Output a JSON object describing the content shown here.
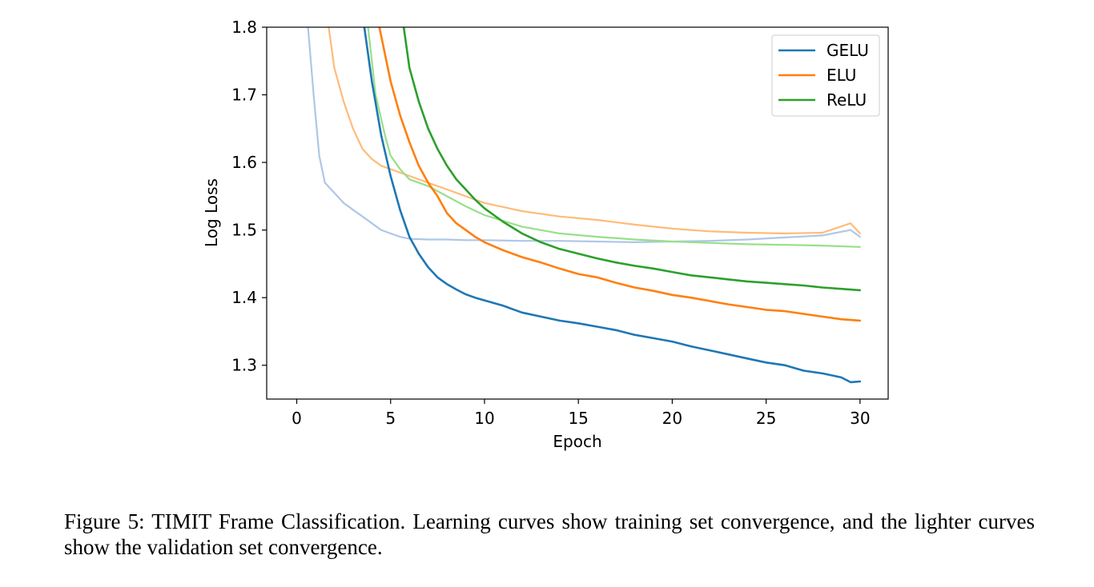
{
  "chart_data": {
    "type": "line",
    "xlabel": "Epoch",
    "ylabel": "Log Loss",
    "xlim": [
      -1.6,
      31.5
    ],
    "ylim": [
      1.25,
      1.8
    ],
    "xticks": [
      0,
      5,
      10,
      15,
      20,
      25,
      30
    ],
    "yticks": [
      1.3,
      1.4,
      1.5,
      1.6,
      1.7,
      1.8
    ],
    "x_tick_labels": [
      "0",
      "5",
      "10",
      "15",
      "20",
      "25",
      "30"
    ],
    "y_tick_labels": [
      "1.3",
      "1.4",
      "1.5",
      "1.6",
      "1.7",
      "1.8"
    ],
    "grid": false,
    "legend_position": "top-right",
    "series": [
      {
        "name": "GELU",
        "role": "train",
        "color": "#1f77b4",
        "x": [
          3.6,
          4.0,
          4.5,
          5.0,
          5.5,
          6.0,
          6.5,
          7.0,
          7.5,
          8.0,
          8.5,
          9.0,
          9.5,
          10.0,
          11.0,
          12.0,
          13.0,
          14.0,
          15.0,
          16.0,
          17.0,
          18.0,
          19.0,
          20.0,
          21.0,
          22.0,
          23.0,
          24.0,
          25.0,
          26.0,
          27.0,
          28.0,
          29.0,
          29.5,
          30.0
        ],
        "y": [
          1.8,
          1.72,
          1.64,
          1.58,
          1.53,
          1.49,
          1.465,
          1.445,
          1.43,
          1.42,
          1.412,
          1.405,
          1.4,
          1.396,
          1.388,
          1.378,
          1.372,
          1.366,
          1.362,
          1.357,
          1.352,
          1.345,
          1.34,
          1.335,
          1.328,
          1.322,
          1.316,
          1.31,
          1.304,
          1.3,
          1.292,
          1.288,
          1.282,
          1.275,
          1.276
        ]
      },
      {
        "name": "ELU",
        "role": "train",
        "color": "#ff7f0e",
        "x": [
          4.4,
          5.0,
          5.5,
          6.0,
          6.5,
          7.0,
          7.5,
          8.0,
          8.5,
          9.0,
          9.5,
          10.0,
          11.0,
          12.0,
          13.0,
          14.0,
          15.0,
          16.0,
          17.0,
          18.0,
          19.0,
          20.0,
          21.0,
          22.0,
          23.0,
          24.0,
          25.0,
          26.0,
          27.0,
          28.0,
          29.0,
          30.0
        ],
        "y": [
          1.8,
          1.72,
          1.67,
          1.63,
          1.595,
          1.57,
          1.55,
          1.525,
          1.51,
          1.5,
          1.49,
          1.482,
          1.47,
          1.46,
          1.452,
          1.443,
          1.435,
          1.43,
          1.422,
          1.415,
          1.41,
          1.404,
          1.4,
          1.395,
          1.39,
          1.386,
          1.382,
          1.38,
          1.376,
          1.372,
          1.368,
          1.366
        ]
      },
      {
        "name": "ReLU",
        "role": "train",
        "color": "#2ca02c",
        "x": [
          5.7,
          6.0,
          6.5,
          7.0,
          7.5,
          8.0,
          8.5,
          9.0,
          9.5,
          10.0,
          11.0,
          12.0,
          13.0,
          14.0,
          15.0,
          16.0,
          17.0,
          18.0,
          19.0,
          20.0,
          21.0,
          22.0,
          23.0,
          24.0,
          25.0,
          26.0,
          27.0,
          28.0,
          29.0,
          30.0
        ],
        "y": [
          1.8,
          1.74,
          1.69,
          1.65,
          1.62,
          1.595,
          1.575,
          1.56,
          1.545,
          1.532,
          1.512,
          1.495,
          1.482,
          1.472,
          1.465,
          1.458,
          1.452,
          1.447,
          1.443,
          1.438,
          1.433,
          1.43,
          1.427,
          1.424,
          1.422,
          1.42,
          1.418,
          1.415,
          1.413,
          1.411
        ]
      },
      {
        "name": "GELU",
        "role": "validation",
        "color": "#aec7e8",
        "x": [
          0.6,
          0.9,
          1.2,
          1.5,
          2.0,
          2.5,
          3.0,
          3.5,
          4.0,
          4.5,
          5.0,
          5.5,
          6.0,
          7.0,
          8.0,
          9.0,
          10.0,
          12.0,
          14.0,
          16.0,
          18.0,
          20.0,
          22.0,
          24.0,
          26.0,
          28.0,
          29.5,
          30.0
        ],
        "y": [
          1.8,
          1.7,
          1.61,
          1.57,
          1.555,
          1.54,
          1.53,
          1.52,
          1.51,
          1.5,
          1.495,
          1.49,
          1.487,
          1.486,
          1.486,
          1.485,
          1.485,
          1.484,
          1.484,
          1.483,
          1.482,
          1.483,
          1.484,
          1.486,
          1.489,
          1.492,
          1.5,
          1.49
        ]
      },
      {
        "name": "ELU",
        "role": "validation",
        "color": "#ffbb78",
        "x": [
          1.7,
          2.0,
          2.5,
          3.0,
          3.5,
          4.0,
          4.5,
          5.0,
          5.5,
          6.0,
          7.0,
          8.0,
          9.0,
          10.0,
          12.0,
          14.0,
          16.0,
          18.0,
          20.0,
          22.0,
          24.0,
          26.0,
          28.0,
          29.5,
          30.0
        ],
        "y": [
          1.8,
          1.74,
          1.69,
          1.65,
          1.62,
          1.605,
          1.595,
          1.59,
          1.585,
          1.58,
          1.57,
          1.56,
          1.55,
          1.54,
          1.528,
          1.52,
          1.515,
          1.508,
          1.502,
          1.498,
          1.496,
          1.495,
          1.496,
          1.51,
          1.495
        ]
      },
      {
        "name": "ReLU",
        "role": "validation",
        "color": "#98df8a",
        "x": [
          3.8,
          4.2,
          4.7,
          5.0,
          5.5,
          6.0,
          7.0,
          8.0,
          9.0,
          10.0,
          12.0,
          14.0,
          16.0,
          18.0,
          20.0,
          22.0,
          24.0,
          26.0,
          28.0,
          30.0
        ],
        "y": [
          1.8,
          1.7,
          1.64,
          1.61,
          1.59,
          1.575,
          1.565,
          1.55,
          1.535,
          1.522,
          1.505,
          1.495,
          1.49,
          1.486,
          1.483,
          1.481,
          1.479,
          1.478,
          1.477,
          1.475
        ]
      }
    ]
  },
  "caption": "Figure 5: TIMIT Frame Classification. Learning curves show training set convergence, and the lighter curves show the validation set convergence."
}
